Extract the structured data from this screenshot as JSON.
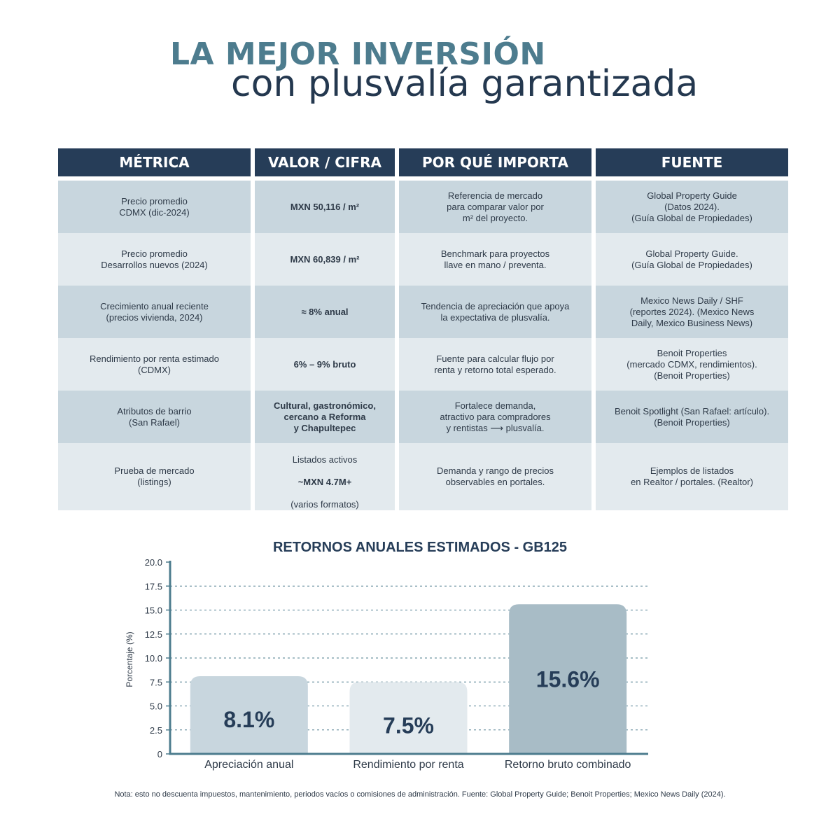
{
  "header": {
    "title_line1": "LA MEJOR INVERSIÓN",
    "title_line2": "con plusvalía garantizada"
  },
  "table": {
    "columns": [
      "MÉTRICA",
      "VALOR / CIFRA",
      "POR QUÉ IMPORTA",
      "FUENTE"
    ],
    "rows": [
      {
        "metric": "Precio promedio\nCDMX (dic-2024)",
        "value": "MXN 50,116 / m²",
        "why": "Referencia de mercado\npara comparar valor por\nm² del proyecto.",
        "source": "Global Property Guide\n(Datos 2024).\n(Guía Global de Propiedades)"
      },
      {
        "metric": "Precio promedio\nDesarrollos nuevos (2024)",
        "value": "MXN 60,839 / m²",
        "why": "Benchmark para proyectos\nllave en mano / preventa.",
        "source": "Global Property Guide.\n(Guía Global de Propiedades)"
      },
      {
        "metric": "Crecimiento anual reciente\n(precios vivienda, 2024)",
        "value": "≈ 8% anual",
        "why": "Tendencia de apreciación que apoya\nla expectativa de plusvalía.",
        "source": "Mexico News Daily / SHF\n(reportes 2024). (Mexico News\nDaily, Mexico Business News)"
      },
      {
        "metric": "Rendimiento por renta estimado\n(CDMX)",
        "value": "6% – 9% bruto",
        "why": "Fuente para calcular flujo por\nrenta y retorno total esperado.",
        "source": "Benoit Properties\n(mercado CDMX, rendimientos).\n(Benoit Properties)"
      },
      {
        "metric": "Atributos de barrio\n(San Rafael)",
        "value": "Cultural, gastronómico,\ncercano a Reforma\ny Chapultepec",
        "why": "Fortalece demanda,\natractivo para compradores\ny rentistas ⟶ plusvalía.",
        "source": "Benoit Spotlight (San Rafael: artículo).\n(Benoit Properties)"
      },
      {
        "metric": "Prueba de mercado\n(listings)",
        "value_pre": "Listados activos",
        "value": "~MXN 4.7M+",
        "value_post": "(varios formatos)",
        "why": "Demanda y rango de precios\nobservables en portales.",
        "source": "Ejemplos de listados\nen Realtor / portales. (Realtor)"
      }
    ]
  },
  "chart_data": {
    "type": "bar",
    "title": "RETORNOS ANUALES ESTIMADOS - GB125",
    "xlabel": "",
    "ylabel": "Porcentaje (%)",
    "ylim": [
      0,
      20
    ],
    "yticks": [
      "0",
      "2.5",
      "5.0",
      "7.5",
      "10.0",
      "12.5",
      "15.0",
      "17.5",
      "20.0"
    ],
    "grid": true,
    "categories": [
      "Apreciación anual",
      "Rendimiento por renta",
      "Retorno bruto combinado"
    ],
    "values": [
      8.1,
      7.5,
      15.6
    ],
    "labels": [
      "8.1%",
      "7.5%",
      "15.6%"
    ],
    "colors": [
      "#c8d6de",
      "#e3eaee",
      "#a8bcc6"
    ],
    "axis_color": "#4d7c8e",
    "label_color": "#263d58"
  },
  "footer": {
    "note": "Nota: esto no descuenta impuestos, mantenimiento, periodos vacíos o comisiones de administración. Fuente: Global Property Guide; Benoit Properties; Mexico News Daily (2024)."
  }
}
